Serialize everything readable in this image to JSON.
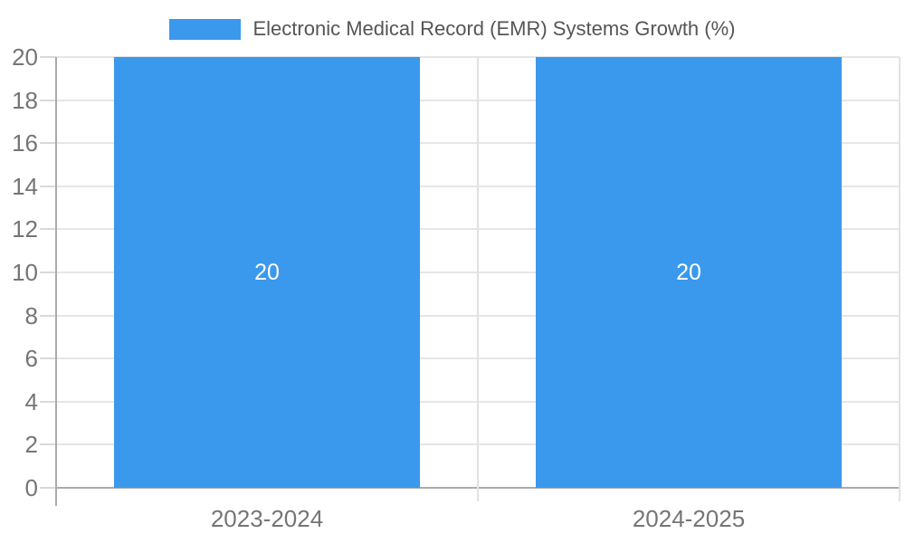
{
  "chart_data": {
    "type": "bar",
    "categories": [
      "2023-2024",
      "2024-2025"
    ],
    "series": [
      {
        "name": "Electronic Medical Record (EMR) Systems Growth (%)",
        "values": [
          20,
          20
        ]
      }
    ],
    "bar_value_labels": [
      "20",
      "20"
    ],
    "title": "",
    "xlabel": "",
    "ylabel": "",
    "ylim": [
      0,
      20
    ],
    "yticks": [
      0,
      2,
      4,
      6,
      8,
      10,
      12,
      14,
      16,
      18,
      20
    ],
    "grid": true,
    "legend_position": "top",
    "colors": {
      "bar": "#3A99EC",
      "grid": "#E6E6E6",
      "axis": "#ABABAB",
      "tick_stub": "#D9D9D9",
      "boundary_line": "#E2E2E2",
      "tick_label": "#757575",
      "legend_text": "#555555",
      "bar_label": "#FFFFFF"
    }
  }
}
